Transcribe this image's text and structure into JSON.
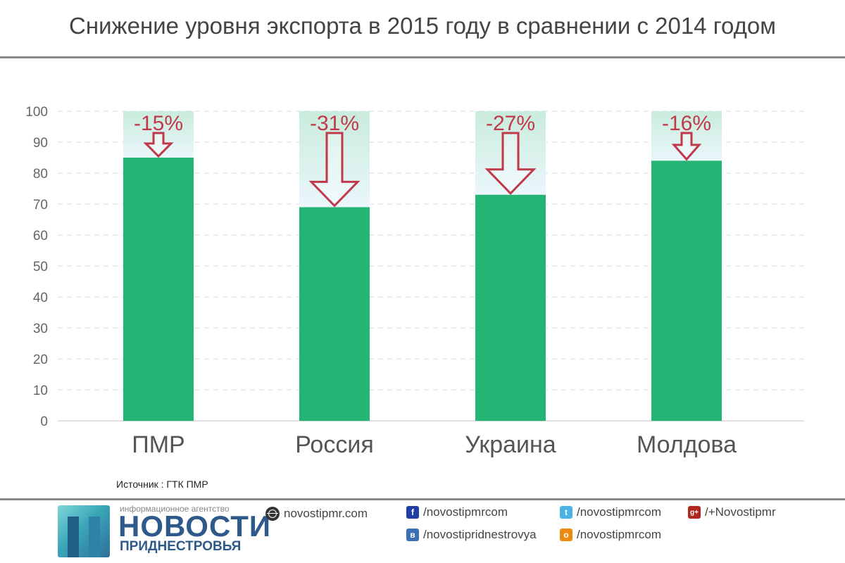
{
  "title": "Снижение уровня экспорта в 2015 году в сравнении с 2014 годом",
  "source": "Источник : ГТК ПМР",
  "colors": {
    "bar": "#24b473",
    "ghost_top": "#c9ecdc",
    "ghost_bottom": "#eaf6fb",
    "arrow": "#c0394b",
    "grid": "#d8d8d8"
  },
  "chart_data": {
    "type": "bar",
    "categories": [
      "ПМР",
      "Россия",
      "Украина",
      "Молдова"
    ],
    "values": [
      85,
      69,
      73,
      84
    ],
    "baseline": 100,
    "drops": [
      "-15%",
      "-31%",
      "-27%",
      "-16%"
    ],
    "ylim": [
      0,
      100
    ],
    "yticks": [
      0,
      10,
      20,
      30,
      40,
      50,
      60,
      70,
      80,
      90,
      100
    ],
    "grid": true
  },
  "footer": {
    "logo_small": "информационное агентство",
    "logo_big": "НОВОСТИ",
    "logo_sub": "ПРИДНЕСТРОВЬЯ",
    "website": "novostipmr.com",
    "links": {
      "facebook": {
        "icon": "facebook-icon",
        "text": "/novostipmrcom"
      },
      "vk": {
        "icon": "vk-icon",
        "text": "/novostipridnestrovya"
      },
      "twitter": {
        "icon": "twitter-icon",
        "text": "/novostipmrcom"
      },
      "odnoklassniki": {
        "icon": "odnoklassniki-icon",
        "text": "/novostipmrcom"
      },
      "googleplus": {
        "icon": "googleplus-icon",
        "text": "/+Novostipmr"
      }
    }
  }
}
